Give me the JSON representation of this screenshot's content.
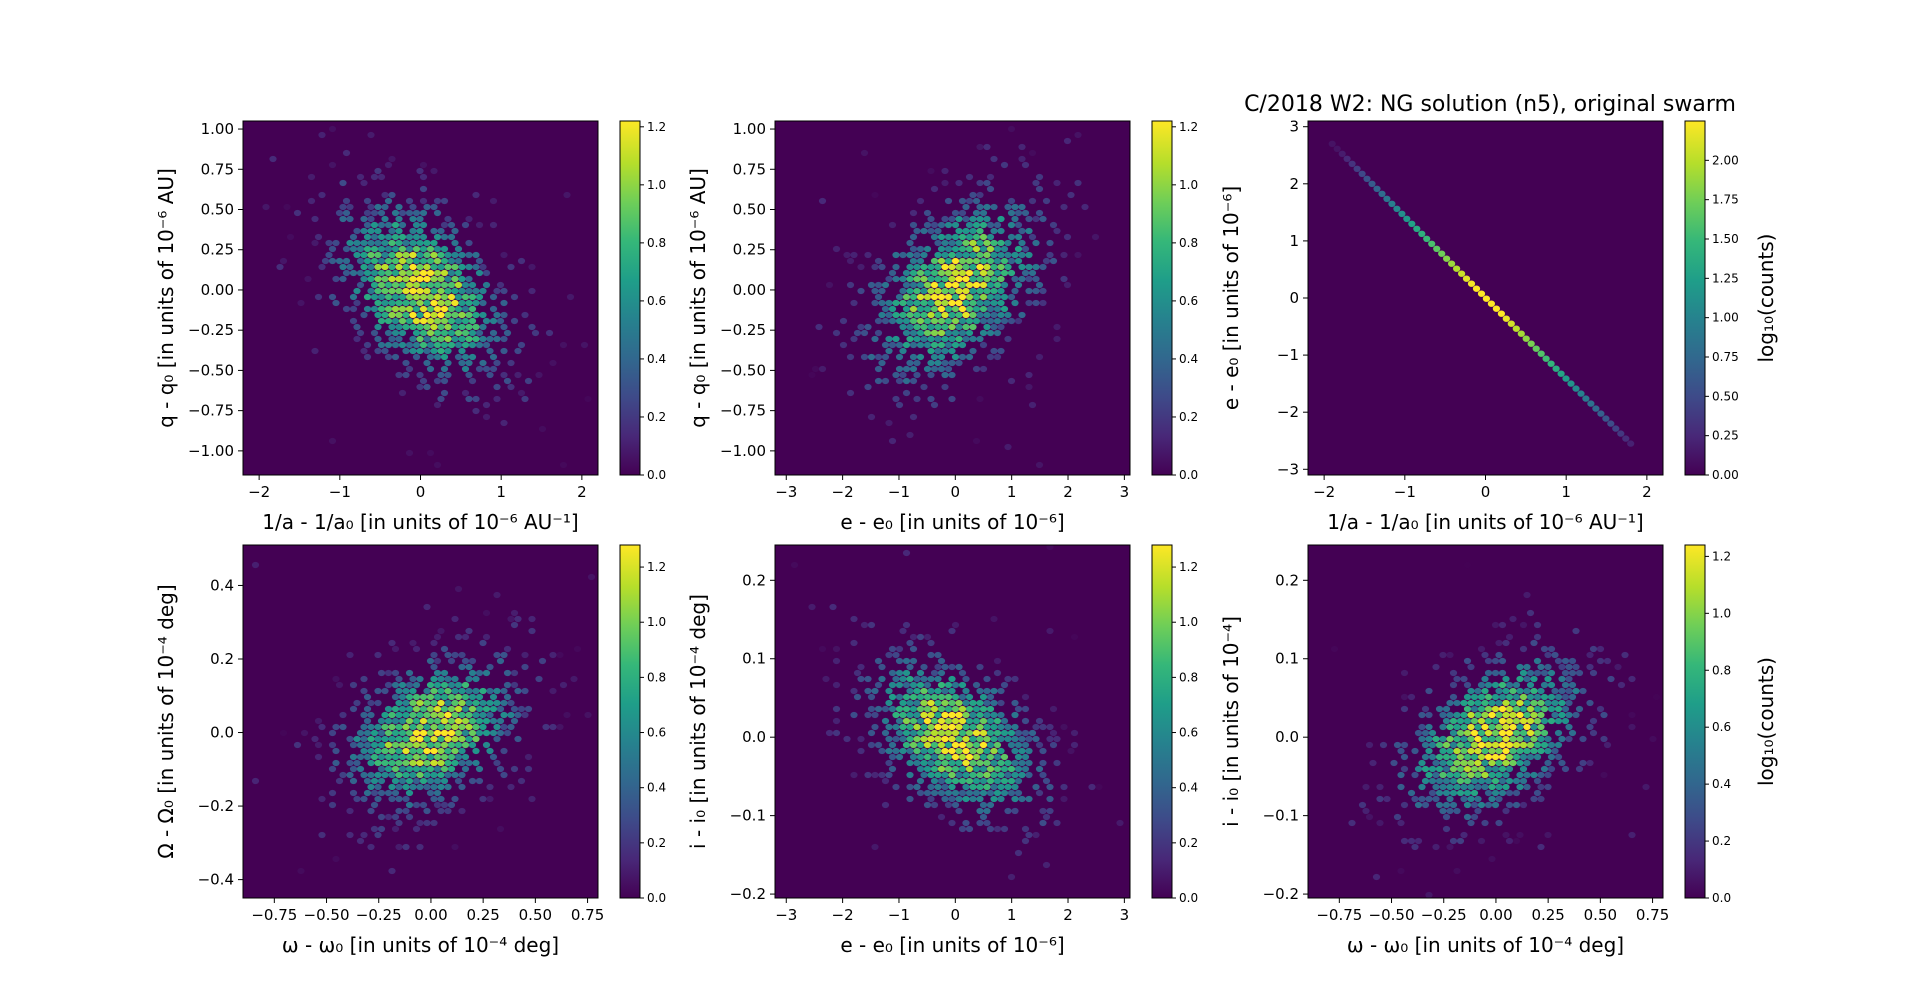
{
  "figure": {
    "title": "C/2018 W2: NG solution (n5), original swarm"
  },
  "colors": {
    "background": "#440154",
    "colormap": [
      "#440154",
      "#482878",
      "#3e4a89",
      "#31688e",
      "#26828e",
      "#1f9e89",
      "#35b779",
      "#6ece58",
      "#b5de2b",
      "#fde725"
    ]
  },
  "chart_data": [
    {
      "type": "heatmap",
      "name": "panel-1",
      "xlabel": "1/a - 1/a₀ [in units of 10⁻⁶ AU⁻¹]",
      "ylabel": "q - q₀ [in units of 10⁻⁶ AU]",
      "xlim": [
        -2.2,
        2.2
      ],
      "ylim": [
        -1.15,
        1.05
      ],
      "xticks": [
        -2,
        -1,
        0,
        1,
        2
      ],
      "yticks": [
        -1.0,
        -0.75,
        -0.5,
        -0.25,
        0.0,
        0.25,
        0.5,
        0.75,
        1.0
      ],
      "distribution": {
        "sx": 0.62,
        "sy": 0.33,
        "rho": -0.42
      },
      "colorbar": {
        "label": "",
        "max": 1.22,
        "ticks": [
          0.0,
          0.2,
          0.4,
          0.6,
          0.8,
          1.0,
          1.2
        ]
      }
    },
    {
      "type": "heatmap",
      "name": "panel-2",
      "xlabel": "e - e₀ [in units of 10⁻⁶]",
      "ylabel": "q - q₀ [in units of 10⁻⁶ AU]",
      "xlim": [
        -3.2,
        3.1
      ],
      "ylim": [
        -1.15,
        1.05
      ],
      "xticks": [
        -3,
        -2,
        -1,
        0,
        1,
        2,
        3
      ],
      "yticks": [
        -1.0,
        -0.75,
        -0.5,
        -0.25,
        0.0,
        0.25,
        0.5,
        0.75,
        1.0
      ],
      "distribution": {
        "sx": 0.9,
        "sy": 0.33,
        "rho": 0.42
      },
      "colorbar": {
        "label": "",
        "max": 1.22,
        "ticks": [
          0.0,
          0.2,
          0.4,
          0.6,
          0.8,
          1.0,
          1.2
        ]
      }
    },
    {
      "type": "heatmap",
      "name": "panel-3",
      "xlabel": "1/a - 1/a₀ [in units of 10⁻⁶ AU⁻¹]",
      "ylabel": "e - e₀ [in units of 10⁻⁶]",
      "xlim": [
        -2.2,
        2.2
      ],
      "ylim": [
        -3.1,
        3.1
      ],
      "xticks": [
        -2,
        -1,
        0,
        1,
        2
      ],
      "yticks": [
        -3,
        -2,
        -1,
        0,
        1,
        2,
        3
      ],
      "distribution": {
        "line": {
          "x": [
            -1.9,
            1.8
          ],
          "y": [
            2.7,
            -2.55
          ]
        }
      },
      "colorbar": {
        "label": "log₁₀(counts)",
        "max": 2.25,
        "ticks": [
          0.0,
          0.25,
          0.5,
          0.75,
          1.0,
          1.25,
          1.5,
          1.75,
          2.0
        ]
      }
    },
    {
      "type": "heatmap",
      "name": "panel-4",
      "xlabel": "ω - ω₀ [in units of 10⁻⁴ deg]",
      "ylabel": "Ω - Ω₀ [in units of 10⁻⁴ deg]",
      "xlim": [
        -0.9,
        0.8
      ],
      "ylim": [
        -0.45,
        0.51
      ],
      "xticks": [
        -0.75,
        -0.5,
        -0.25,
        0.0,
        0.25,
        0.5,
        0.75
      ],
      "yticks": [
        -0.4,
        -0.2,
        0.0,
        0.2,
        0.4
      ],
      "distribution": {
        "sx": 0.25,
        "sy": 0.12,
        "rho": 0.38
      },
      "colorbar": {
        "label": "",
        "max": 1.28,
        "ticks": [
          0.0,
          0.2,
          0.4,
          0.6,
          0.8,
          1.0,
          1.2
        ]
      }
    },
    {
      "type": "heatmap",
      "name": "panel-5",
      "xlabel": "e - e₀ [in units of 10⁻⁶]",
      "ylabel": "i - i₀ [in units of 10⁻⁴ deg]",
      "xlim": [
        -3.2,
        3.1
      ],
      "ylim": [
        -0.205,
        0.245
      ],
      "xticks": [
        -3,
        -2,
        -1,
        0,
        1,
        2,
        3
      ],
      "yticks": [
        -0.2,
        -0.1,
        0.0,
        0.1,
        0.2
      ],
      "distribution": {
        "sx": 0.9,
        "sy": 0.06,
        "rho": -0.42
      },
      "colorbar": {
        "label": "",
        "max": 1.28,
        "ticks": [
          0.0,
          0.2,
          0.4,
          0.6,
          0.8,
          1.0,
          1.2
        ]
      }
    },
    {
      "type": "heatmap",
      "name": "panel-6",
      "xlabel": "ω - ω₀ [in units of 10⁻⁴ deg]",
      "ylabel": "i - i₀ [in units of 10⁻⁴]",
      "xlim": [
        -0.9,
        0.8
      ],
      "ylim": [
        -0.205,
        0.245
      ],
      "xticks": [
        -0.75,
        -0.5,
        -0.25,
        0.0,
        0.25,
        0.5,
        0.75
      ],
      "yticks": [
        -0.2,
        -0.1,
        0.0,
        0.1,
        0.2
      ],
      "distribution": {
        "sx": 0.25,
        "sy": 0.06,
        "rho": 0.42
      },
      "colorbar": {
        "label": "log₁₀(counts)",
        "max": 1.24,
        "ticks": [
          0.0,
          0.2,
          0.4,
          0.6,
          0.8,
          1.0,
          1.2
        ]
      }
    }
  ]
}
